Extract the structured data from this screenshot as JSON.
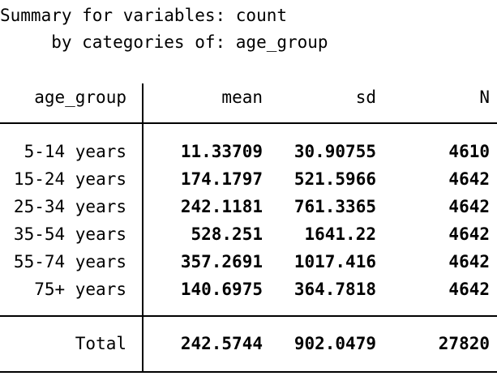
{
  "summary": {
    "line1": "Summary for variables: count",
    "line2": "     by categories of: age_group"
  },
  "table": {
    "headers": {
      "group": "age_group",
      "mean": "mean",
      "sd": "sd",
      "n": "N"
    },
    "rows": [
      {
        "label": "5-14 years",
        "mean": "11.33709",
        "sd": "30.90755",
        "n": "4610"
      },
      {
        "label": "15-24 years",
        "mean": "174.1797",
        "sd": "521.5966",
        "n": "4642"
      },
      {
        "label": "25-34 years",
        "mean": "242.1181",
        "sd": "761.3365",
        "n": "4642"
      },
      {
        "label": "35-54 years",
        "mean": "528.251",
        "sd": "1641.22",
        "n": "4642"
      },
      {
        "label": "55-74 years",
        "mean": "357.2691",
        "sd": "1017.416",
        "n": "4642"
      },
      {
        "label": "75+ years",
        "mean": "140.6975",
        "sd": "364.7818",
        "n": "4642"
      }
    ],
    "total": {
      "label": "Total",
      "mean": "242.5744",
      "sd": "902.0479",
      "n": "27820"
    }
  }
}
